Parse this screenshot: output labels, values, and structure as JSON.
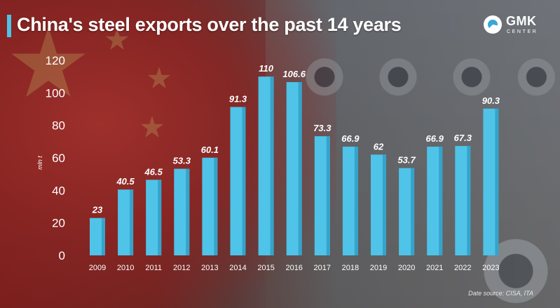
{
  "header": {
    "title": "China's steel exports over the past 14 years"
  },
  "logo": {
    "name": "GMK",
    "sub": "CENTER"
  },
  "source": "Date source: CISA, ITA",
  "colors": {
    "bar": "#4fc3e8",
    "accent": "#4fc3e8",
    "text": "#ffffff"
  },
  "chart_data": {
    "type": "bar",
    "title": "China's steel exports over the past 14 years",
    "xlabel": "",
    "ylabel": "mln t",
    "ylim": [
      0,
      120
    ],
    "yticks": [
      0,
      20,
      40,
      60,
      80,
      100,
      120
    ],
    "grid": false,
    "categories": [
      "2009",
      "2010",
      "2011",
      "2012",
      "2013",
      "2014",
      "2015",
      "2016",
      "2017",
      "2018",
      "2019",
      "2020",
      "2021",
      "2022",
      "2023"
    ],
    "values": [
      23,
      40.5,
      46.5,
      53.3,
      60.1,
      91.3,
      110,
      106.6,
      73.3,
      66.9,
      62,
      53.7,
      66.9,
      67.3,
      90.3
    ],
    "value_labels": [
      "23",
      "40.5",
      "46.5",
      "53.3",
      "60.1",
      "91.3",
      "110",
      "106.6",
      "73.3",
      "66.9",
      "62",
      "53.7",
      "66.9",
      "67.3",
      "90.3"
    ]
  }
}
